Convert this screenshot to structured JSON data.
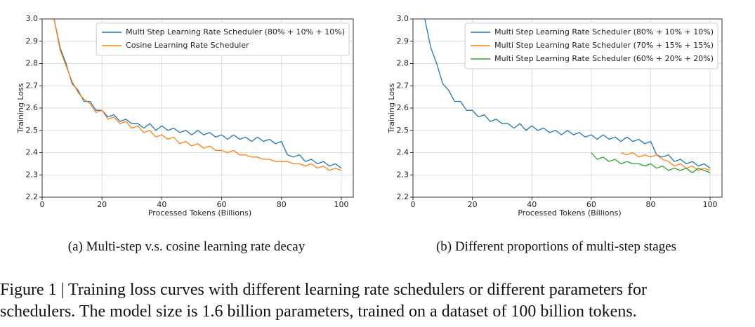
{
  "chart_data": [
    {
      "type": "line",
      "xlabel": "Processed Tokens (Billions)",
      "ylabel": "Training Loss",
      "xlim": [
        0,
        104
      ],
      "ylim": [
        2.2,
        3.0
      ],
      "xticks": [
        0,
        20,
        40,
        60,
        80,
        100
      ],
      "yticks": [
        2.2,
        2.3,
        2.4,
        2.5,
        2.6,
        2.7,
        2.8,
        2.9,
        {
          "value": 3,
          "label": "3.0"
        }
      ],
      "grid": true,
      "legend": "upper right",
      "x": [
        4,
        6,
        8,
        10,
        12,
        14,
        16,
        18,
        20,
        22,
        24,
        26,
        28,
        30,
        32,
        34,
        36,
        38,
        40,
        42,
        44,
        46,
        48,
        50,
        52,
        54,
        56,
        58,
        60,
        62,
        64,
        66,
        68,
        70,
        72,
        74,
        76,
        78,
        80,
        82,
        84,
        86,
        88,
        90,
        92,
        94,
        96,
        98,
        100
      ],
      "series": [
        {
          "name": "Multi Step Learning Rate Scheduler (80% + 10% + 10%)",
          "color": "#1f77b4",
          "values": [
            3.0,
            2.87,
            2.8,
            2.71,
            2.68,
            2.63,
            2.63,
            2.59,
            2.59,
            2.56,
            2.57,
            2.54,
            2.55,
            2.53,
            2.53,
            2.51,
            2.53,
            2.5,
            2.52,
            2.5,
            2.51,
            2.49,
            2.5,
            2.48,
            2.5,
            2.48,
            2.49,
            2.47,
            2.48,
            2.46,
            2.48,
            2.46,
            2.47,
            2.45,
            2.47,
            2.45,
            2.46,
            2.44,
            2.45,
            2.39,
            2.38,
            2.39,
            2.36,
            2.37,
            2.35,
            2.36,
            2.34,
            2.35,
            2.33
          ]
        },
        {
          "name": "Cosine Learning Rate Scheduler",
          "color": "#ff7f0e",
          "values": [
            3.0,
            2.86,
            2.79,
            2.72,
            2.67,
            2.64,
            2.62,
            2.58,
            2.59,
            2.55,
            2.56,
            2.53,
            2.54,
            2.51,
            2.52,
            2.49,
            2.5,
            2.47,
            2.48,
            2.46,
            2.47,
            2.44,
            2.45,
            2.43,
            2.44,
            2.42,
            2.43,
            2.41,
            2.41,
            2.4,
            2.41,
            2.39,
            2.39,
            2.38,
            2.38,
            2.37,
            2.37,
            2.36,
            2.36,
            2.36,
            2.35,
            2.35,
            2.34,
            2.35,
            2.33,
            2.34,
            2.32,
            2.33,
            2.32
          ]
        }
      ],
      "caption": "(a)  Multi-step v.s. cosine learning rate decay"
    },
    {
      "type": "line",
      "xlabel": "Processed Tokens (Billions)",
      "ylabel": "Training Loss",
      "xlim": [
        0,
        104
      ],
      "ylim": [
        2.2,
        3.0
      ],
      "xticks": [
        0,
        20,
        40,
        60,
        80,
        100
      ],
      "yticks": [
        2.2,
        2.3,
        2.4,
        2.5,
        2.6,
        2.7,
        2.8,
        2.9,
        {
          "value": 3,
          "label": "3.0"
        }
      ],
      "grid": true,
      "legend": "upper right",
      "x": [
        4,
        6,
        8,
        10,
        12,
        14,
        16,
        18,
        20,
        22,
        24,
        26,
        28,
        30,
        32,
        34,
        36,
        38,
        40,
        42,
        44,
        46,
        48,
        50,
        52,
        54,
        56,
        58,
        60,
        62,
        64,
        66,
        68,
        70,
        72,
        74,
        76,
        78,
        80,
        82,
        84,
        86,
        88,
        90,
        92,
        94,
        96,
        98,
        100
      ],
      "series": [
        {
          "name": "Multi Step Learning Rate Scheduler (80% + 10% + 10%)",
          "color": "#1f77b4",
          "values": [
            3.0,
            2.87,
            2.8,
            2.71,
            2.68,
            2.63,
            2.63,
            2.59,
            2.59,
            2.56,
            2.57,
            2.54,
            2.55,
            2.53,
            2.53,
            2.51,
            2.53,
            2.5,
            2.52,
            2.5,
            2.51,
            2.49,
            2.5,
            2.48,
            2.5,
            2.48,
            2.49,
            2.47,
            2.48,
            2.46,
            2.48,
            2.46,
            2.47,
            2.45,
            2.47,
            2.45,
            2.46,
            2.44,
            2.45,
            2.39,
            2.38,
            2.39,
            2.36,
            2.37,
            2.35,
            2.36,
            2.34,
            2.35,
            2.33
          ]
        },
        {
          "name": "Multi Step Learning Rate Scheduler (70% + 15% + 15%)",
          "color": "#ff7f0e",
          "values": [
            null,
            null,
            null,
            null,
            null,
            null,
            null,
            null,
            null,
            null,
            null,
            null,
            null,
            null,
            null,
            null,
            null,
            null,
            null,
            null,
            null,
            null,
            null,
            null,
            null,
            null,
            null,
            null,
            null,
            null,
            null,
            null,
            null,
            2.4,
            2.39,
            2.4,
            2.38,
            2.39,
            2.38,
            2.39,
            2.37,
            2.36,
            2.34,
            2.35,
            2.33,
            2.34,
            2.32,
            2.33,
            2.32
          ]
        },
        {
          "name": "Multi Step Learning Rate Scheduler (60% + 20% + 20%)",
          "color": "#2ca02c",
          "values": [
            null,
            null,
            null,
            null,
            null,
            null,
            null,
            null,
            null,
            null,
            null,
            null,
            null,
            null,
            null,
            null,
            null,
            null,
            null,
            null,
            null,
            null,
            null,
            null,
            null,
            null,
            null,
            null,
            2.4,
            2.37,
            2.38,
            2.36,
            2.37,
            2.35,
            2.36,
            2.35,
            2.35,
            2.34,
            2.35,
            2.33,
            2.34,
            2.32,
            2.33,
            2.32,
            2.33,
            2.31,
            2.33,
            2.32,
            2.31
          ]
        }
      ],
      "caption": "(b)  Different proportions of multi-step stages"
    }
  ],
  "figure_caption": {
    "lines": [
      "Figure 1 | Training loss curves with different learning rate schedulers or different parameters for",
      "schedulers. The model size is 1.6 billion parameters, trained on a dataset of 100 billion tokens."
    ]
  }
}
